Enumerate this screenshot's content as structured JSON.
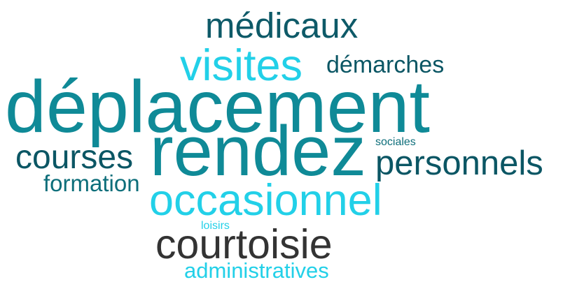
{
  "words": [
    {
      "text": "médicaux",
      "color": "#0e5a68"
    },
    {
      "text": "visites",
      "color": "#22d0e8"
    },
    {
      "text": "démarches",
      "color": "#0b5664"
    },
    {
      "text": "déplacement",
      "color": "#0f8a97"
    },
    {
      "text": "rendez",
      "color": "#0f8a97"
    },
    {
      "text": "sociales",
      "color": "#0d6e7a"
    },
    {
      "text": "courses",
      "color": "#0b5664"
    },
    {
      "text": "personnels",
      "color": "#0b5664"
    },
    {
      "text": "formation",
      "color": "#0d6e7a"
    },
    {
      "text": "occasionnel",
      "color": "#22d0e8"
    },
    {
      "text": "loisirs",
      "color": "#22d0e8"
    },
    {
      "text": "courtoisie",
      "color": "#333333"
    },
    {
      "text": "administratives",
      "color": "#22d0e8"
    }
  ]
}
